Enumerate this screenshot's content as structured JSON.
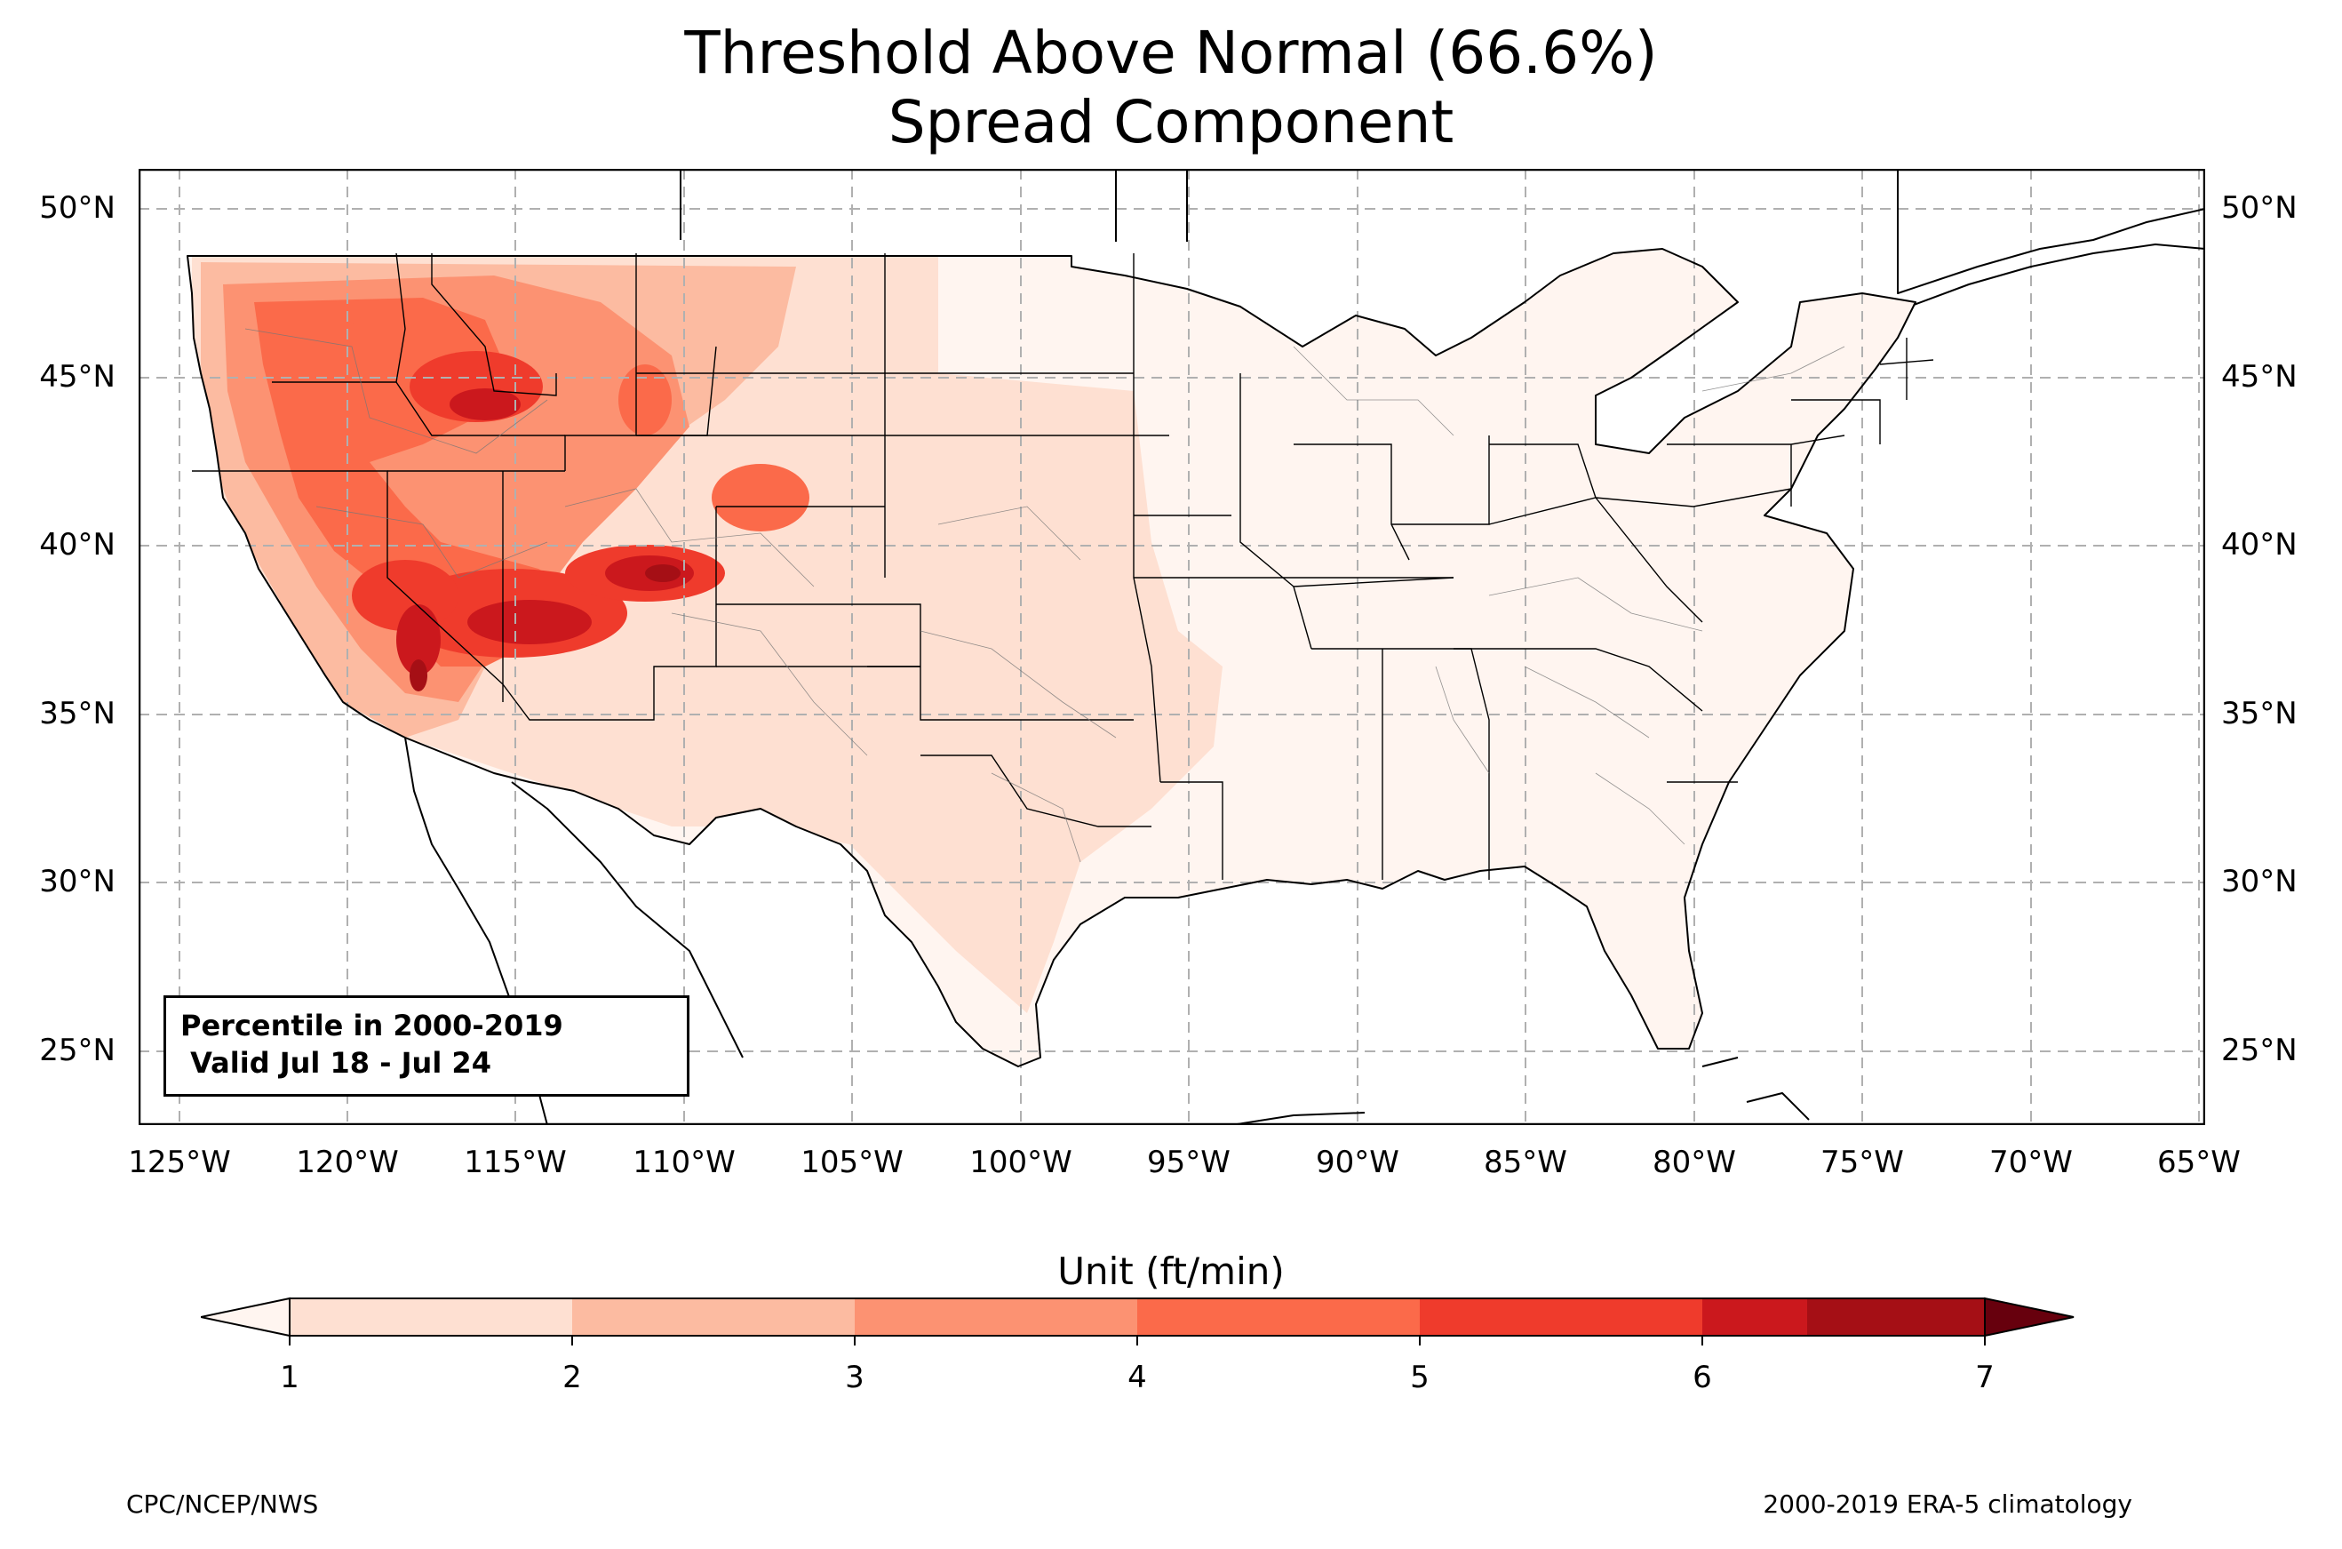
{
  "title": {
    "line1": "Threshold Above Normal (66.6%)",
    "line2": "Spread Component"
  },
  "map": {
    "lat_ticks": [
      "50°N",
      "45°N",
      "40°N",
      "35°N",
      "30°N",
      "25°N"
    ],
    "lon_ticks": [
      "125°W",
      "120°W",
      "115°W",
      "110°W",
      "105°W",
      "100°W",
      "95°W",
      "90°W",
      "85°W",
      "80°W",
      "75°W",
      "70°W",
      "65°W"
    ],
    "lat_range": [
      22.8,
      51.2
    ],
    "lon_range": [
      -126.2,
      -64.8
    ],
    "grid": true,
    "info_box": {
      "line1": "Percentile in 2000-2019",
      "line2": " Valid Jul 18 - Jul 24"
    }
  },
  "colorbar": {
    "label": "Unit (ft/min)",
    "ticks": [
      "1",
      "2",
      "3",
      "4",
      "5",
      "6",
      "7"
    ],
    "colors": [
      "#fee0d2",
      "#fcbba1",
      "#fc9272",
      "#fb6a4a",
      "#ef3b2c",
      "#cb181d",
      "#a50f15"
    ],
    "under_color": "#fff5f0",
    "over_color": "#67000d",
    "extend": "both"
  },
  "credits": {
    "left": "CPC/NCEP/NWS",
    "right": "2000-2019 ERA-5 climatology"
  }
}
